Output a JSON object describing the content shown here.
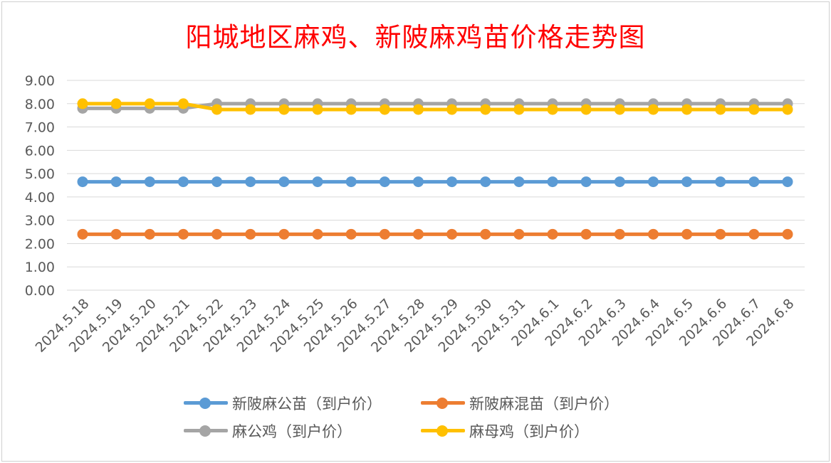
{
  "chart_data": {
    "type": "line",
    "title": "阳城地区麻鸡、新陂麻鸡苗价格走势图",
    "xlabel": "",
    "ylabel": "",
    "ylim": [
      0,
      9
    ],
    "yticks": [
      "0.00",
      "1.00",
      "2.00",
      "3.00",
      "4.00",
      "5.00",
      "6.00",
      "7.00",
      "8.00",
      "9.00"
    ],
    "grid": true,
    "legend_position": "bottom",
    "categories": [
      "2024.5.18",
      "2024.5.19",
      "2024.5.20",
      "2024.5.21",
      "2024.5.22",
      "2024.5.23",
      "2024.5.24",
      "2024.5.25",
      "2024.5.26",
      "2024.5.27",
      "2024.5.28",
      "2024.5.29",
      "2024.5.30",
      "2024.5.31",
      "2024.6.1",
      "2024.6.2",
      "2024.6.3",
      "2024.6.4",
      "2024.6.5",
      "2024.6.6",
      "2024.6.7",
      "2024.6.8"
    ],
    "series": [
      {
        "name": "新陂麻公苗（到户价）",
        "color": "#5b9bd5",
        "values": [
          4.65,
          4.65,
          4.65,
          4.65,
          4.65,
          4.65,
          4.65,
          4.65,
          4.65,
          4.65,
          4.65,
          4.65,
          4.65,
          4.65,
          4.65,
          4.65,
          4.65,
          4.65,
          4.65,
          4.65,
          4.65,
          4.65
        ]
      },
      {
        "name": "新陂麻混苗（到户价）",
        "color": "#ed7d31",
        "values": [
          2.4,
          2.4,
          2.4,
          2.4,
          2.4,
          2.4,
          2.4,
          2.4,
          2.4,
          2.4,
          2.4,
          2.4,
          2.4,
          2.4,
          2.4,
          2.4,
          2.4,
          2.4,
          2.4,
          2.4,
          2.4,
          2.4
        ]
      },
      {
        "name": "麻公鸡（到户价）",
        "color": "#a5a5a5",
        "values": [
          7.8,
          7.8,
          7.8,
          7.8,
          8.0,
          8.0,
          8.0,
          8.0,
          8.0,
          8.0,
          8.0,
          8.0,
          8.0,
          8.0,
          8.0,
          8.0,
          8.0,
          8.0,
          8.0,
          8.0,
          8.0,
          8.0
        ]
      },
      {
        "name": "麻母鸡（到户价）",
        "color": "#ffc000",
        "values": [
          8.0,
          8.0,
          8.0,
          8.0,
          7.75,
          7.75,
          7.75,
          7.75,
          7.75,
          7.75,
          7.75,
          7.75,
          7.75,
          7.75,
          7.75,
          7.75,
          7.75,
          7.75,
          7.75,
          7.75,
          7.75,
          7.75
        ]
      }
    ]
  }
}
